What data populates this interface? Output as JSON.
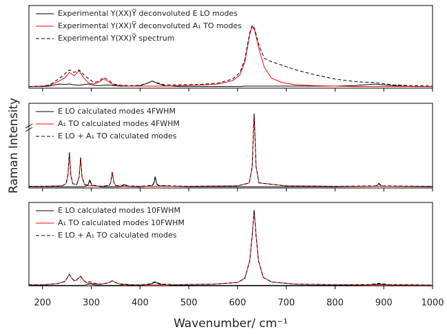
{
  "chart_data": [
    {
      "type": "line",
      "legend": "upper left",
      "xlim": [
        172,
        1000
      ],
      "ylim": [
        0,
        1
      ],
      "x": [
        172,
        200,
        215,
        225,
        235,
        245,
        255,
        265,
        275,
        285,
        295,
        305,
        315,
        325,
        335,
        345,
        360,
        380,
        400,
        415,
        425,
        435,
        450,
        480,
        520,
        560,
        590,
        605,
        615,
        625,
        630,
        635,
        645,
        655,
        670,
        690,
        720,
        760,
        800,
        840,
        870,
        880,
        890,
        920,
        960,
        1000
      ],
      "series": [
        {
          "name": "Experimental Y(XX)Y̅ deconvoluted E LO modes",
          "color": "#000000",
          "linestyle": "solid",
          "values": [
            0.02,
            0.02,
            0.025,
            0.04,
            0.05,
            0.045,
            0.05,
            0.04,
            0.035,
            0.045,
            0.05,
            0.035,
            0.03,
            0.035,
            0.04,
            0.03,
            0.025,
            0.025,
            0.03,
            0.06,
            0.085,
            0.06,
            0.03,
            0.02,
            0.02,
            0.02,
            0.02,
            0.02,
            0.025,
            0.025,
            0.025,
            0.025,
            0.025,
            0.025,
            0.025,
            0.025,
            0.025,
            0.025,
            0.025,
            0.03,
            0.045,
            0.05,
            0.045,
            0.03,
            0.02,
            0.02
          ]
        },
        {
          "name": "Experimental Y(XX)Y̅ deconvoluted A₁ TO modes",
          "color": "#ff0000",
          "linestyle": "solid",
          "values": [
            0.02,
            0.025,
            0.035,
            0.06,
            0.09,
            0.12,
            0.19,
            0.15,
            0.21,
            0.12,
            0.06,
            0.05,
            0.07,
            0.11,
            0.08,
            0.04,
            0.03,
            0.025,
            0.025,
            0.025,
            0.025,
            0.025,
            0.025,
            0.03,
            0.035,
            0.05,
            0.09,
            0.16,
            0.32,
            0.65,
            0.75,
            0.7,
            0.45,
            0.25,
            0.12,
            0.07,
            0.04,
            0.03,
            0.025,
            0.02,
            0.02,
            0.02,
            0.02,
            0.02,
            0.02,
            0.02
          ]
        },
        {
          "name": "Experimental Y(XX)Y̅ spectrum",
          "color": "#000000",
          "linestyle": "dashed",
          "values": [
            0.02,
            0.025,
            0.04,
            0.08,
            0.12,
            0.17,
            0.22,
            0.19,
            0.22,
            0.16,
            0.11,
            0.07,
            0.08,
            0.13,
            0.1,
            0.05,
            0.035,
            0.03,
            0.035,
            0.06,
            0.085,
            0.065,
            0.04,
            0.04,
            0.045,
            0.06,
            0.11,
            0.19,
            0.35,
            0.67,
            0.76,
            0.72,
            0.5,
            0.36,
            0.32,
            0.28,
            0.22,
            0.16,
            0.11,
            0.08,
            0.07,
            0.07,
            0.06,
            0.04,
            0.03,
            0.025
          ]
        }
      ]
    },
    {
      "type": "line",
      "legend": "upper left",
      "xlim": [
        172,
        1000
      ],
      "ylim": [
        0,
        1
      ],
      "ylabel": "Raman Intensity",
      "x": [
        172,
        200,
        240,
        248,
        252,
        255,
        258,
        262,
        270,
        275,
        278,
        281,
        286,
        293,
        297,
        301,
        320,
        337,
        340,
        343,
        346,
        350,
        362,
        368,
        374,
        400,
        424,
        428,
        431,
        434,
        438,
        500,
        600,
        624,
        630,
        634,
        638,
        644,
        700,
        800,
        884,
        890,
        896,
        1000
      ],
      "series": [
        {
          "name": "E LO calculated modes 4FWHM",
          "color": "#000000",
          "linestyle": "solid",
          "values": [
            0.015,
            0.015,
            0.015,
            0.015,
            0.015,
            0.015,
            0.015,
            0.015,
            0.015,
            0.015,
            0.015,
            0.015,
            0.015,
            0.03,
            0.09,
            0.03,
            0.015,
            0.015,
            0.015,
            0.015,
            0.015,
            0.015,
            0.018,
            0.04,
            0.018,
            0.015,
            0.025,
            0.05,
            0.13,
            0.05,
            0.025,
            0.015,
            0.015,
            0.015,
            0.015,
            0.015,
            0.015,
            0.015,
            0.015,
            0.015,
            0.02,
            0.05,
            0.02,
            0.015
          ]
        },
        {
          "name": "A₁ TO calculated modes 4FWHM",
          "color": "#ff0000",
          "linestyle": "solid",
          "values": [
            0.02,
            0.02,
            0.025,
            0.05,
            0.15,
            0.42,
            0.15,
            0.05,
            0.04,
            0.13,
            0.36,
            0.13,
            0.04,
            0.025,
            0.025,
            0.025,
            0.02,
            0.03,
            0.07,
            0.19,
            0.07,
            0.03,
            0.02,
            0.02,
            0.02,
            0.02,
            0.02,
            0.02,
            0.02,
            0.02,
            0.02,
            0.02,
            0.025,
            0.06,
            0.25,
            0.88,
            0.25,
            0.06,
            0.025,
            0.02,
            0.02,
            0.02,
            0.02,
            0.02
          ]
        },
        {
          "name": "E LO + A₁ TO calculated modes",
          "color": "#000000",
          "linestyle": "dashed",
          "values": [
            0.02,
            0.02,
            0.025,
            0.05,
            0.15,
            0.42,
            0.15,
            0.05,
            0.04,
            0.13,
            0.36,
            0.13,
            0.04,
            0.035,
            0.1,
            0.035,
            0.02,
            0.03,
            0.07,
            0.19,
            0.07,
            0.03,
            0.025,
            0.045,
            0.025,
            0.02,
            0.03,
            0.055,
            0.135,
            0.055,
            0.03,
            0.02,
            0.025,
            0.06,
            0.25,
            0.88,
            0.25,
            0.06,
            0.025,
            0.02,
            0.025,
            0.055,
            0.025,
            0.02
          ]
        }
      ]
    },
    {
      "type": "line",
      "legend": "upper left",
      "xlim": [
        172,
        1000
      ],
      "ylim": [
        0,
        1
      ],
      "xlabel": "Wavenumber/ cm⁻¹",
      "xticks": [
        200,
        300,
        400,
        500,
        600,
        700,
        800,
        900,
        1000
      ],
      "x": [
        172,
        200,
        230,
        245,
        250,
        255,
        260,
        265,
        270,
        278,
        285,
        290,
        297,
        305,
        320,
        335,
        343,
        351,
        360,
        368,
        380,
        400,
        420,
        431,
        442,
        470,
        550,
        600,
        615,
        625,
        630,
        634,
        638,
        643,
        653,
        670,
        720,
        800,
        870,
        890,
        910,
        1000
      ],
      "series": [
        {
          "name": "E LO calculated modes 10FWHM",
          "color": "#000000",
          "linestyle": "solid",
          "values": [
            0.005,
            0.005,
            0.005,
            0.005,
            0.005,
            0.005,
            0.005,
            0.005,
            0.005,
            0.005,
            0.005,
            0.012,
            0.025,
            0.012,
            0.005,
            0.005,
            0.005,
            0.005,
            0.005,
            0.012,
            0.005,
            0.005,
            0.018,
            0.04,
            0.018,
            0.005,
            0.005,
            0.005,
            0.005,
            0.005,
            0.005,
            0.005,
            0.005,
            0.005,
            0.005,
            0.005,
            0.005,
            0.005,
            0.01,
            0.02,
            0.01,
            0.005
          ]
        },
        {
          "name": "A₁ TO calculated modes 10FWHM",
          "color": "#ff0000",
          "linestyle": "solid",
          "values": [
            0.01,
            0.012,
            0.025,
            0.05,
            0.09,
            0.14,
            0.09,
            0.06,
            0.07,
            0.115,
            0.06,
            0.035,
            0.03,
            0.025,
            0.02,
            0.035,
            0.06,
            0.035,
            0.02,
            0.015,
            0.012,
            0.01,
            0.01,
            0.01,
            0.01,
            0.012,
            0.02,
            0.04,
            0.09,
            0.3,
            0.6,
            0.91,
            0.6,
            0.3,
            0.1,
            0.045,
            0.02,
            0.012,
            0.01,
            0.01,
            0.01,
            0.008
          ]
        },
        {
          "name": "E LO + A₁ TO calculated modes",
          "color": "#000000",
          "linestyle": "dashed",
          "values": [
            0.01,
            0.012,
            0.025,
            0.05,
            0.09,
            0.14,
            0.09,
            0.06,
            0.07,
            0.115,
            0.06,
            0.042,
            0.05,
            0.032,
            0.02,
            0.035,
            0.06,
            0.035,
            0.02,
            0.022,
            0.012,
            0.01,
            0.023,
            0.05,
            0.023,
            0.012,
            0.02,
            0.04,
            0.09,
            0.3,
            0.6,
            0.91,
            0.6,
            0.3,
            0.1,
            0.045,
            0.02,
            0.012,
            0.015,
            0.03,
            0.015,
            0.008
          ]
        }
      ]
    }
  ]
}
